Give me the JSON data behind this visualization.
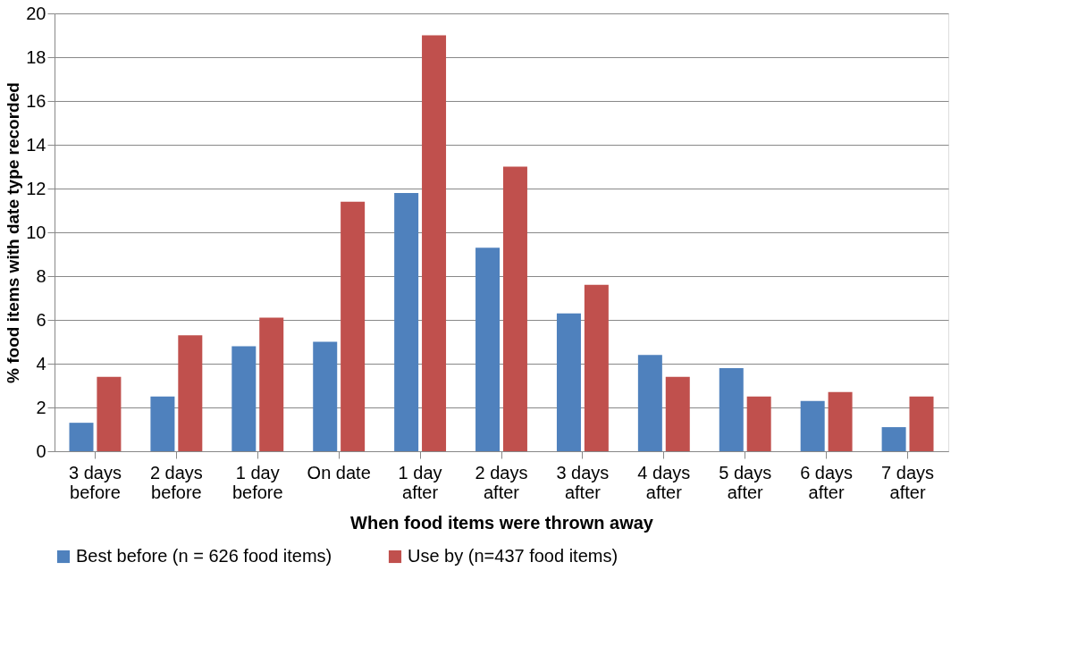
{
  "chart_data": {
    "type": "bar",
    "xlabel": "When food items were thrown away",
    "ylabel": "% food items with date type recorded",
    "categories": [
      "3 days\nbefore",
      "2 days\nbefore",
      "1 day\nbefore",
      "On date",
      "1 day\nafter",
      "2 days\nafter",
      "3 days\nafter",
      "4 days\nafter",
      "5 days\nafter",
      "6 days\nafter",
      "7 days\nafter"
    ],
    "series": [
      {
        "name": "Best before (n = 626 food items)",
        "color": "#4f81bd",
        "values": [
          1.3,
          2.5,
          4.8,
          5.0,
          11.8,
          9.3,
          6.3,
          4.4,
          3.8,
          2.3,
          1.1
        ]
      },
      {
        "name": "Use by (n=437 food items)",
        "color": "#c0504d",
        "values": [
          3.4,
          5.3,
          6.1,
          11.4,
          19.0,
          13.0,
          7.6,
          3.4,
          2.5,
          2.7,
          2.5
        ]
      }
    ],
    "ylim": [
      0,
      20
    ],
    "yticks": [
      0,
      2,
      4,
      6,
      8,
      10,
      12,
      14,
      16,
      18,
      20
    ],
    "grid": "y",
    "legend": "bottom"
  }
}
